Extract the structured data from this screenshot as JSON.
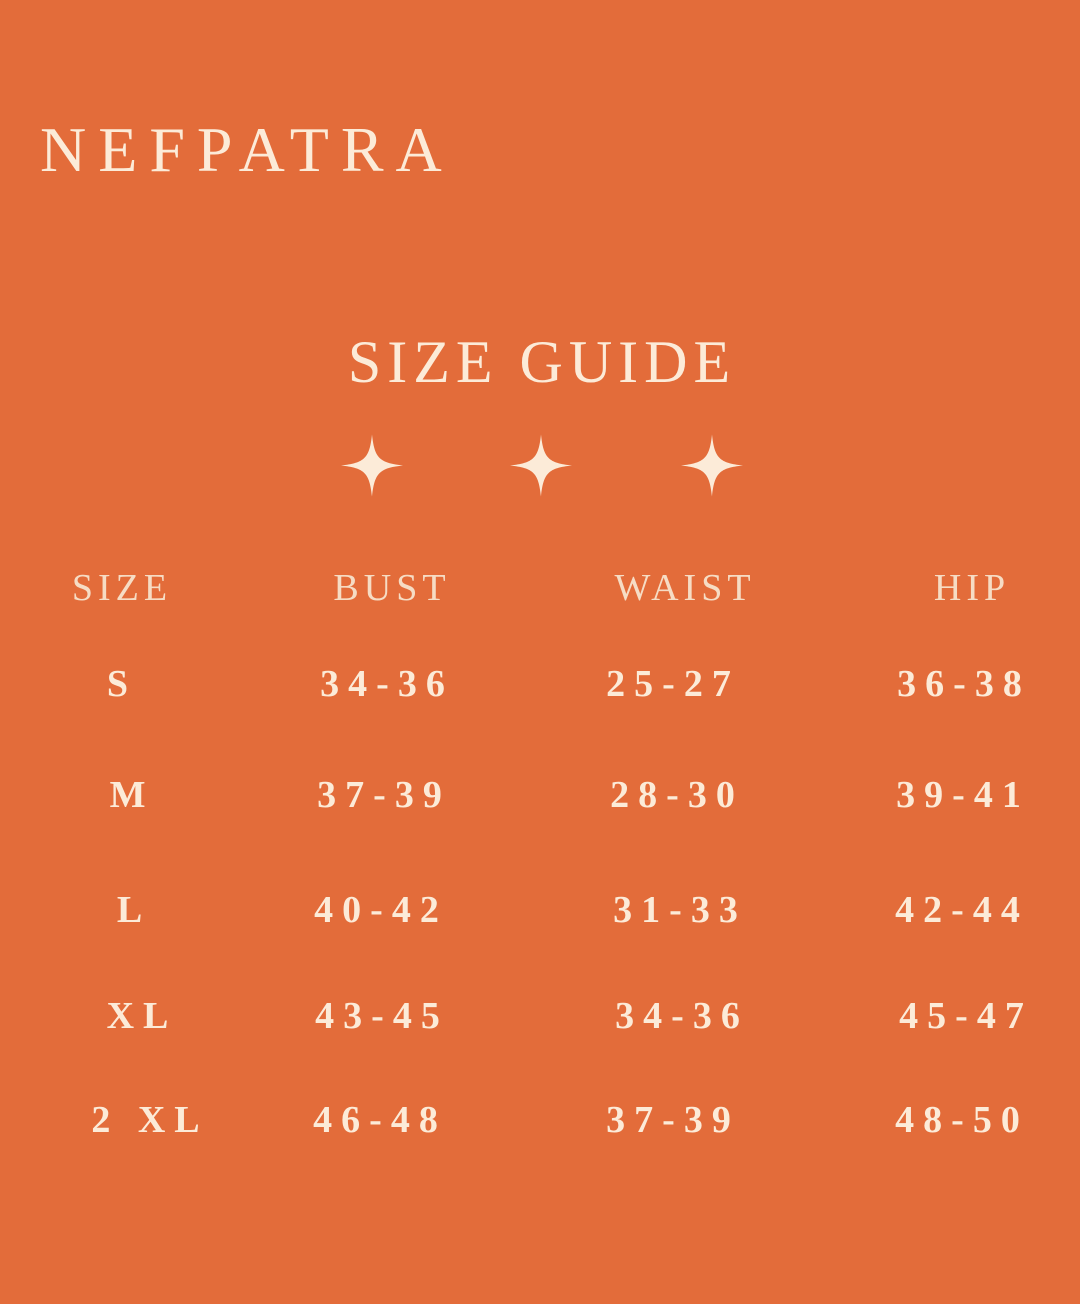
{
  "brand": "NEFPATRA",
  "title": "SIZE GUIDE",
  "colors": {
    "background": "#E36C3A",
    "text": "#FCEBD8"
  },
  "decoration_icons": [
    "sparkle-star-icon",
    "sparkle-star-icon",
    "sparkle-star-icon"
  ],
  "table": {
    "headers": [
      "SIZE",
      "BUST",
      "WAIST",
      "HIP"
    ],
    "rows": [
      [
        "S",
        "34-36",
        "25-27",
        "36-38"
      ],
      [
        "M",
        "37-39",
        "28-30",
        "39-41"
      ],
      [
        "L",
        "40-42",
        "31-33",
        "42-44"
      ],
      [
        "XL",
        "43-45",
        "34-36",
        "45-47"
      ],
      [
        "2 XL",
        "46-48",
        "37-39",
        "48-50"
      ]
    ]
  }
}
